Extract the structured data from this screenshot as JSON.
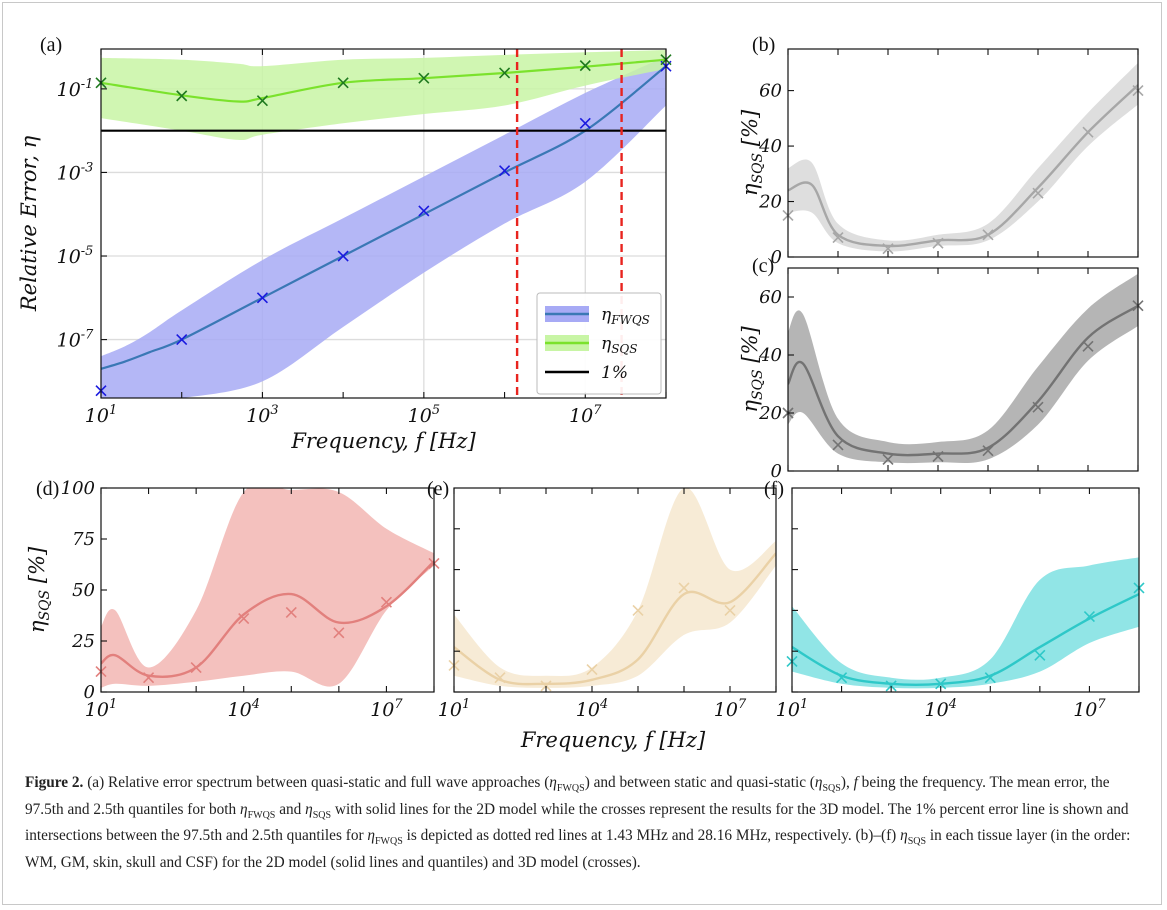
{
  "figure": {
    "panel_labels": [
      "(a)",
      "(b)",
      "(c)",
      "(d)",
      "(e)",
      "(f)"
    ],
    "shared_xlabel": "Frequency, f [Hz]"
  },
  "chart_data": [
    {
      "panel": "(a)",
      "type": "line",
      "xscale": "log",
      "yscale": "log",
      "xlim": [
        10,
        100000000
      ],
      "ylim": [
        4e-09,
        0.9
      ],
      "xticks": [
        "10^1",
        "10^3",
        "10^5",
        "10^7"
      ],
      "yticks": [
        "10^-7",
        "10^-5",
        "10^-3",
        "10^-1"
      ],
      "xlabel": "Frequency, f [Hz]",
      "ylabel": "Relative Error, η",
      "grid": true,
      "legend": {
        "placement": "lower-right",
        "entries": [
          "η_FWQS",
          "η_SQS",
          "1%"
        ]
      },
      "series": [
        {
          "name": "η_FWQS",
          "color": "#3a78b5",
          "band_color": "#a7aaf5",
          "x": [
            10,
            20,
            40,
            100,
            1000,
            10000,
            100000,
            1000000,
            10000000,
            100000000
          ],
          "mean": [
            2e-08,
            3e-08,
            5e-08,
            1e-07,
            1e-06,
            1e-05,
            0.0001,
            0.001,
            0.01,
            0.35
          ],
          "upper": [
            4e-08,
            7e-08,
            1.5e-07,
            5e-07,
            8e-06,
            8e-05,
            0.0008,
            0.008,
            0.08,
            0.6
          ],
          "lower": [
            4e-09,
            4e-09,
            4e-09,
            4e-09,
            1e-08,
            2e-07,
            4e-06,
            6e-05,
            0.0006,
            0.04
          ],
          "crosses_x": [
            10,
            100,
            1000,
            10000,
            100000,
            1000000,
            10000000,
            100000000
          ],
          "crosses_y": [
            6e-09,
            1e-07,
            1e-06,
            1e-05,
            0.00012,
            0.0011,
            0.015,
            0.35
          ]
        },
        {
          "name": "η_SQS",
          "color": "#7be22c",
          "band_color": "#c8f5a5",
          "x": [
            10,
            100,
            500,
            1000,
            10000,
            100000,
            1000000,
            10000000,
            100000000
          ],
          "mean": [
            0.14,
            0.07,
            0.05,
            0.06,
            0.14,
            0.18,
            0.24,
            0.34,
            0.5
          ],
          "upper": [
            0.55,
            0.5,
            0.4,
            0.35,
            0.5,
            0.55,
            0.65,
            0.75,
            0.85
          ],
          "lower": [
            0.02,
            0.01,
            0.006,
            0.008,
            0.015,
            0.025,
            0.04,
            0.12,
            0.3
          ],
          "crosses_x": [
            10,
            100,
            1000,
            10000,
            100000,
            1000000,
            10000000,
            100000000
          ],
          "crosses_y": [
            0.14,
            0.068,
            0.052,
            0.14,
            0.18,
            0.24,
            0.36,
            0.5
          ]
        },
        {
          "name": "1%",
          "color": "#000000",
          "x": [
            10,
            100000000
          ],
          "mean": [
            0.01,
            0.01
          ]
        }
      ],
      "vlines": {
        "color": "#e8241f",
        "x": [
          1430000,
          28160000
        ]
      }
    },
    {
      "panel": "(b)",
      "type": "line",
      "xscale": "log",
      "xlim": [
        10,
        100000000
      ],
      "ylim": [
        0,
        75
      ],
      "yticks": [
        "0",
        "20",
        "40",
        "60"
      ],
      "ylabel": "η_SQS [%]",
      "color": "#a7a7a7",
      "band_color": "#d8d8d8",
      "x": [
        10,
        30,
        100,
        1000,
        10000,
        100000,
        1000000,
        10000000,
        100000000
      ],
      "mean": [
        24,
        26,
        8,
        4,
        6,
        8,
        25,
        45,
        62
      ],
      "upper": [
        32,
        34,
        12,
        6,
        8,
        12,
        32,
        52,
        70
      ],
      "lower": [
        16,
        16,
        5,
        2,
        4,
        6,
        20,
        40,
        55
      ],
      "crosses_x": [
        10,
        100,
        1000,
        10000,
        100000,
        1000000,
        10000000,
        100000000
      ],
      "crosses_y": [
        15,
        7,
        3,
        5,
        8,
        23,
        45,
        60
      ]
    },
    {
      "panel": "(c)",
      "type": "line",
      "xscale": "log",
      "xlim": [
        10,
        100000000
      ],
      "ylim": [
        0,
        70
      ],
      "yticks": [
        "0",
        "20",
        "40",
        "60"
      ],
      "ylabel": "η_SQS [%]",
      "color": "#737373",
      "band_color": "#a8a8a8",
      "x": [
        10,
        20,
        100,
        1000,
        10000,
        100000,
        1000000,
        10000000,
        100000000
      ],
      "mean": [
        30,
        37,
        12,
        6,
        6,
        8,
        24,
        46,
        57
      ],
      "upper": [
        48,
        54,
        18,
        10,
        10,
        14,
        36,
        56,
        68
      ],
      "lower": [
        16,
        20,
        6,
        3,
        3,
        4,
        16,
        38,
        50
      ],
      "crosses_x": [
        10,
        100,
        1000,
        10000,
        100000,
        1000000,
        10000000,
        100000000
      ],
      "crosses_y": [
        20,
        9,
        4,
        5,
        7,
        22,
        43,
        57
      ]
    },
    {
      "panel": "(d)",
      "type": "line",
      "xscale": "log",
      "xlim": [
        10,
        100000000
      ],
      "ylim": [
        0,
        100
      ],
      "xticks": [
        "10^1",
        "10^4",
        "10^7"
      ],
      "yticks": [
        "0",
        "25",
        "50",
        "75",
        "100"
      ],
      "ylabel": "η_SQS [%]",
      "color": "#e2807d",
      "band_color": "#f2b6b3",
      "x": [
        10,
        20,
        100,
        1000,
        10000,
        100000,
        1000000,
        10000000,
        100000000
      ],
      "mean": [
        14,
        18,
        8,
        12,
        38,
        48,
        34,
        42,
        64
      ],
      "upper": [
        32,
        40,
        12,
        40,
        98,
        99,
        98,
        80,
        68
      ],
      "lower": [
        2,
        4,
        3,
        5,
        8,
        10,
        4,
        40,
        62
      ],
      "crosses_x": [
        10,
        100,
        1000,
        10000,
        100000,
        1000000,
        10000000,
        100000000
      ],
      "crosses_y": [
        10,
        7,
        12,
        36,
        39,
        29,
        44,
        63
      ]
    },
    {
      "panel": "(e)",
      "type": "line",
      "xscale": "log",
      "xlim": [
        10,
        100000000
      ],
      "ylim": [
        0,
        100
      ],
      "xticks": [
        "10^1",
        "10^4",
        "10^7"
      ],
      "color": "#ead1a6",
      "band_color": "#f6e8cf",
      "x": [
        10,
        100,
        1000,
        10000,
        100000,
        1000000,
        10000000,
        100000000
      ],
      "mean": [
        22,
        6,
        4,
        6,
        16,
        48,
        44,
        68
      ],
      "upper": [
        38,
        12,
        8,
        12,
        40,
        100,
        60,
        74
      ],
      "lower": [
        8,
        3,
        2,
        3,
        8,
        28,
        34,
        62
      ],
      "crosses_x": [
        10,
        100,
        1000,
        10000,
        100000,
        1000000,
        10000000
      ],
      "crosses_y": [
        13,
        7,
        3,
        11,
        40,
        51,
        40
      ]
    },
    {
      "panel": "(f)",
      "type": "line",
      "xscale": "log",
      "xlim": [
        10,
        100000000
      ],
      "ylim": [
        0,
        100
      ],
      "xticks": [
        "10^1",
        "10^4",
        "10^7"
      ],
      "color": "#2ec8c8",
      "band_color": "#7ee0e2",
      "x": [
        10,
        100,
        1000,
        10000,
        100000,
        1000000,
        10000000,
        100000000
      ],
      "mean": [
        22,
        8,
        4,
        4,
        8,
        22,
        36,
        48
      ],
      "upper": [
        42,
        14,
        7,
        7,
        16,
        55,
        62,
        66
      ],
      "lower": [
        10,
        4,
        2,
        2,
        4,
        10,
        24,
        32
      ],
      "crosses_x": [
        10,
        100,
        1000,
        10000,
        100000,
        1000000,
        10000000,
        100000000
      ],
      "crosses_y": [
        15,
        7,
        3,
        4,
        7,
        18,
        37,
        51
      ]
    }
  ],
  "caption": {
    "label": "Figure 2.",
    "text": "(a) Relative error spectrum between quasi-static and full wave approaches (η_FWQS) and between static and quasi-static (η_SQS), f being the frequency. The mean error, the 97.5th and 2.5th quantiles for both η_FWQS and η_SQS with solid lines for the 2D model while the crosses represent the results for the 3D model. The 1% percent error line is shown and intersections between the 97.5th and 2.5th quantiles for η_FWQS is depicted as dotted red lines at 1.43 MHz and 28.16 MHz, respectively. (b)–(f) η_SQS in each tissue layer (in the order: WM, GM, skin, skull and CSF) for the 2D model (solid lines and quantiles) and 3D model (crosses)."
  }
}
